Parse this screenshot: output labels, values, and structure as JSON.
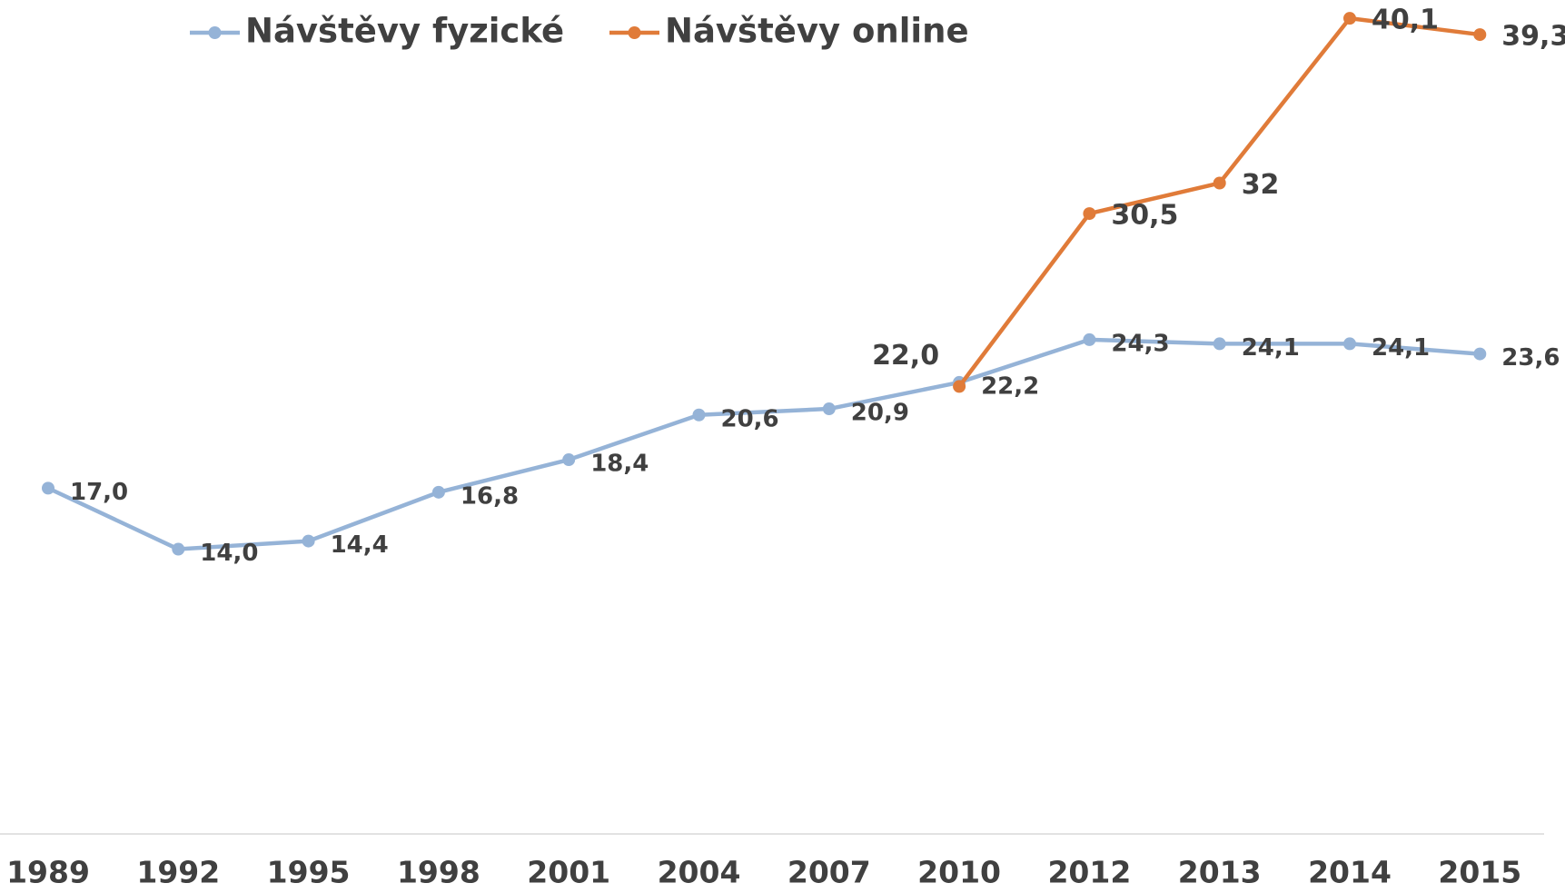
{
  "chart_data": {
    "type": "line",
    "categories": [
      "1989",
      "1992",
      "1995",
      "1998",
      "2001",
      "2004",
      "2007",
      "2010",
      "2012",
      "2013",
      "2014",
      "2015"
    ],
    "series": [
      {
        "name": "Návštěvy fyzické",
        "color": "#95b3d7",
        "values": [
          17.0,
          14.0,
          14.4,
          16.8,
          18.4,
          20.6,
          20.9,
          22.2,
          24.3,
          24.1,
          24.1,
          23.6
        ],
        "value_labels": [
          "17,0",
          "14,0",
          "14,4",
          "16,8",
          "18,4",
          "20,6",
          "20,9",
          "22,2",
          "24,3",
          "24,1",
          "24,1",
          "23,6"
        ]
      },
      {
        "name": "Návštěvy online",
        "color": "#e07b39",
        "values": [
          null,
          null,
          null,
          null,
          null,
          null,
          null,
          22.0,
          30.5,
          32,
          40.1,
          39.3
        ],
        "value_labels": [
          null,
          null,
          null,
          null,
          null,
          null,
          null,
          "22,0",
          "30,5",
          "32",
          "40,1",
          "39,3"
        ]
      }
    ],
    "ylim": [
      0,
      41
    ],
    "legend": "top"
  }
}
